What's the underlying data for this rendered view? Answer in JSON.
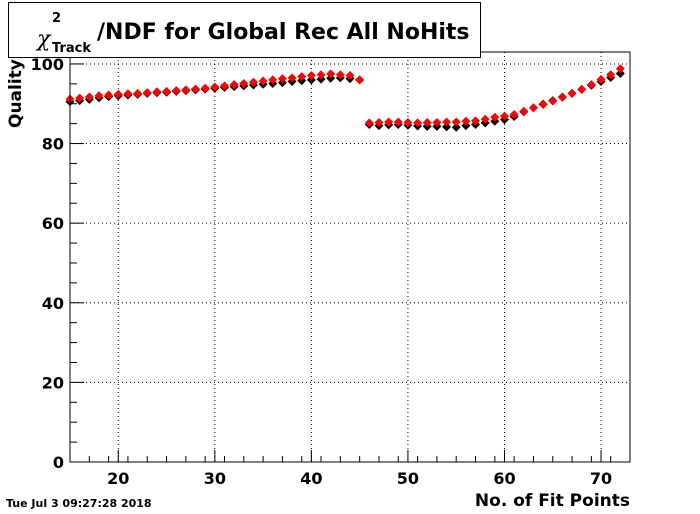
{
  "title": {
    "symbol": "χ",
    "superscript": "2",
    "subscript": "Track",
    "text": "/NDF for Global Rec All NoHits"
  },
  "timestamp": "Tue Jul  3 09:27:28 2018",
  "chart_data": {
    "type": "scatter",
    "xlabel": "No. of Fit Points",
    "ylabel": "Quality",
    "xlim": [
      15,
      73
    ],
    "ylim": [
      0,
      103
    ],
    "x_ticks": [
      20,
      30,
      40,
      50,
      60,
      70
    ],
    "y_ticks": [
      0,
      20,
      40,
      60,
      80,
      100
    ],
    "grid": true,
    "colors": {
      "black_series": "#000000",
      "red_series": "#ff0000"
    },
    "x": [
      15,
      16,
      17,
      18,
      19,
      20,
      21,
      22,
      23,
      24,
      25,
      26,
      27,
      28,
      29,
      30,
      31,
      32,
      33,
      34,
      35,
      36,
      37,
      38,
      39,
      40,
      41,
      42,
      43,
      44,
      45,
      46,
      47,
      48,
      49,
      50,
      51,
      52,
      53,
      54,
      55,
      56,
      57,
      58,
      59,
      60,
      61,
      62,
      63,
      64,
      65,
      66,
      67,
      68,
      69,
      70,
      71,
      72
    ],
    "series": [
      {
        "marker": "diamond",
        "color": "#000000",
        "values": [
          90.5,
          90.8,
          91.1,
          91.5,
          91.8,
          92.0,
          92.2,
          92.4,
          92.6,
          92.8,
          92.9,
          93.1,
          93.3,
          93.5,
          93.7,
          93.9,
          94.1,
          94.3,
          94.5,
          94.7,
          94.9,
          95.1,
          95.3,
          95.6,
          95.8,
          96.0,
          96.2,
          96.4,
          96.5,
          96.3,
          96.0,
          84.8,
          84.5,
          84.7,
          84.8,
          84.6,
          84.4,
          84.3,
          84.3,
          84.2,
          84.1,
          84.5,
          84.8,
          85.2,
          85.6,
          86.0,
          86.8,
          88.0,
          89.0,
          89.9,
          90.8,
          91.7,
          92.6,
          93.6,
          94.6,
          95.6,
          96.6,
          97.6
        ]
      },
      {
        "marker": "diamond",
        "color": "#ff0000",
        "values": [
          91.2,
          91.4,
          91.7,
          92.0,
          92.2,
          92.4,
          92.5,
          92.6,
          92.8,
          93.0,
          93.1,
          93.3,
          93.5,
          93.7,
          93.9,
          94.2,
          94.5,
          94.8,
          95.1,
          95.4,
          95.7,
          96.0,
          96.3,
          96.5,
          96.8,
          97.1,
          97.3,
          97.5,
          97.3,
          97.1,
          96.0,
          85.2,
          85.3,
          85.4,
          85.4,
          85.3,
          85.2,
          85.3,
          85.3,
          85.4,
          85.4,
          85.6,
          85.7,
          86.1,
          86.6,
          86.9,
          87.3,
          88.1,
          89.0,
          89.8,
          90.7,
          91.6,
          92.6,
          93.6,
          94.8,
          96.1,
          97.3,
          98.8
        ]
      }
    ]
  }
}
